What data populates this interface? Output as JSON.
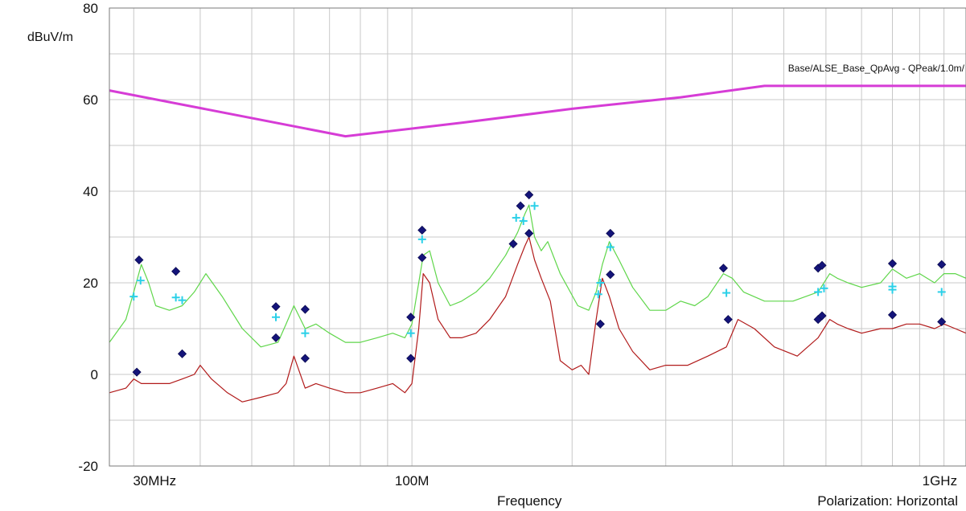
{
  "chart_data": {
    "type": "line",
    "xscale": "log",
    "xlim": [
      27,
      1100
    ],
    "ylim": [
      -20,
      80
    ],
    "ylabel": "dBuV/m",
    "xlabel": "Frequency",
    "x_tick_labels": [
      {
        "x": 30,
        "label": "30MHz"
      },
      {
        "x": 100,
        "label": "100M"
      },
      {
        "x": 1000,
        "label": "1GHz"
      }
    ],
    "y_ticks": [
      -20,
      0,
      20,
      40,
      60,
      80
    ],
    "x_gridlines": [
      30,
      40,
      50,
      60,
      70,
      80,
      90,
      100,
      200,
      300,
      400,
      500,
      600,
      700,
      800,
      900,
      1000
    ],
    "y_gridlines": [
      -20,
      -10,
      0,
      10,
      20,
      30,
      40,
      50,
      60,
      70,
      80
    ],
    "grid": true,
    "polarization": "Polarization: Horizontal",
    "colors": {
      "limit": "#d63cd6",
      "peak": "#5fd64a",
      "average": "#b11a1a",
      "marker_peak": "#14147a",
      "marker_qp": "#2bd0e8",
      "grid": "#c8c8c8",
      "frame": "#7a7a7a"
    },
    "series": [
      {
        "name": "Base/ALSE_Base_QpAvg - QPeak/1.0m/",
        "role": "limit",
        "x": [
          27,
          75,
          125,
          200,
          320,
          460,
          1100
        ],
        "y": [
          62,
          52,
          55,
          58,
          60.5,
          63,
          63
        ]
      },
      {
        "role": "peak",
        "x": [
          27,
          29,
          30,
          31,
          32,
          33,
          35,
          37,
          39,
          41,
          44,
          48,
          52,
          56,
          58,
          60,
          63,
          66,
          70,
          75,
          80,
          86,
          92,
          97,
          100,
          103,
          105,
          108,
          112,
          118,
          124,
          132,
          140,
          150,
          158,
          163,
          166,
          170,
          175,
          180,
          190,
          205,
          215,
          222,
          228,
          235,
          245,
          260,
          280,
          300,
          320,
          340,
          360,
          385,
          400,
          420,
          460,
          520,
          580,
          610,
          630,
          660,
          700,
          760,
          800,
          850,
          900,
          960,
          1000,
          1050,
          1100
        ],
        "y": [
          7,
          12,
          18,
          24,
          20,
          15,
          14,
          15,
          18,
          22,
          17,
          10,
          6,
          7,
          11,
          15,
          10,
          11,
          9,
          7,
          7,
          8,
          9,
          8,
          11,
          20,
          26,
          27,
          20,
          15,
          16,
          18,
          21,
          26,
          31,
          35,
          37,
          30,
          27,
          29,
          22,
          15,
          14,
          18,
          24,
          29,
          25,
          19,
          14,
          14,
          16,
          15,
          17,
          22,
          21,
          18,
          16,
          16,
          18,
          22,
          21,
          20,
          19,
          20,
          23,
          21,
          22,
          20,
          22,
          22,
          21
        ]
      },
      {
        "role": "average",
        "x": [
          27,
          29,
          30,
          31,
          33,
          35,
          37,
          39,
          40,
          42,
          45,
          48,
          52,
          56,
          58,
          60,
          63,
          66,
          70,
          75,
          80,
          86,
          92,
          97,
          100,
          103,
          105,
          108,
          112,
          118,
          124,
          132,
          140,
          150,
          158,
          163,
          166,
          170,
          175,
          182,
          190,
          200,
          208,
          215,
          222,
          228,
          235,
          245,
          260,
          280,
          300,
          330,
          360,
          390,
          410,
          440,
          480,
          530,
          580,
          610,
          630,
          660,
          700,
          760,
          800,
          850,
          900,
          960,
          1000,
          1050,
          1100
        ],
        "y": [
          -4,
          -3,
          -1,
          -2,
          -2,
          -2,
          -1,
          0,
          2,
          -1,
          -4,
          -6,
          -5,
          -4,
          -2,
          4,
          -3,
          -2,
          -3,
          -4,
          -4,
          -3,
          -2,
          -4,
          -2,
          10,
          22,
          20,
          12,
          8,
          8,
          9,
          12,
          17,
          24,
          28,
          30,
          25,
          21,
          16,
          3,
          1,
          2,
          0,
          12,
          21,
          17,
          10,
          5,
          1,
          2,
          2,
          4,
          6,
          12,
          10,
          6,
          4,
          8,
          12,
          11,
          10,
          9,
          10,
          10,
          11,
          11,
          10,
          11,
          10,
          9
        ]
      }
    ],
    "peak_markers": [
      {
        "x": 30.7,
        "y": 25
      },
      {
        "x": 36,
        "y": 22.5
      },
      {
        "x": 55.5,
        "y": 14.8
      },
      {
        "x": 63,
        "y": 14.2
      },
      {
        "x": 99.5,
        "y": 12.5
      },
      {
        "x": 104.5,
        "y": 31.5
      },
      {
        "x": 160,
        "y": 36.8
      },
      {
        "x": 166,
        "y": 39.2
      },
      {
        "x": 236,
        "y": 30.8
      },
      {
        "x": 385,
        "y": 23.2
      },
      {
        "x": 580,
        "y": 23.2
      },
      {
        "x": 590,
        "y": 23.8
      },
      {
        "x": 800,
        "y": 24.2
      },
      {
        "x": 990,
        "y": 24
      }
    ],
    "average_markers": [
      {
        "x": 30.4,
        "y": 0.5
      },
      {
        "x": 37,
        "y": 4.5
      },
      {
        "x": 55.5,
        "y": 8
      },
      {
        "x": 63,
        "y": 3.5
      },
      {
        "x": 99.5,
        "y": 3.5
      },
      {
        "x": 104.5,
        "y": 25.5
      },
      {
        "x": 155,
        "y": 28.5
      },
      {
        "x": 166,
        "y": 30.8
      },
      {
        "x": 226,
        "y": 11
      },
      {
        "x": 236,
        "y": 21.8
      },
      {
        "x": 393,
        "y": 12
      },
      {
        "x": 580,
        "y": 12
      },
      {
        "x": 590,
        "y": 12.8
      },
      {
        "x": 800,
        "y": 13
      },
      {
        "x": 990,
        "y": 11.5
      }
    ],
    "qp_markers": [
      {
        "x": 30,
        "y": 17
      },
      {
        "x": 30.9,
        "y": 20.5
      },
      {
        "x": 36,
        "y": 16.8
      },
      {
        "x": 37,
        "y": 16.2
      },
      {
        "x": 55.5,
        "y": 12.5
      },
      {
        "x": 63,
        "y": 9
      },
      {
        "x": 99.5,
        "y": 9
      },
      {
        "x": 104.5,
        "y": 29.5
      },
      {
        "x": 157,
        "y": 34.2
      },
      {
        "x": 162,
        "y": 33.5
      },
      {
        "x": 170,
        "y": 36.8
      },
      {
        "x": 224,
        "y": 17.5
      },
      {
        "x": 226,
        "y": 20
      },
      {
        "x": 236,
        "y": 27.8
      },
      {
        "x": 390,
        "y": 17.8
      },
      {
        "x": 580,
        "y": 18
      },
      {
        "x": 595,
        "y": 18.8
      },
      {
        "x": 800,
        "y": 18.5
      },
      {
        "x": 800,
        "y": 19.2
      },
      {
        "x": 990,
        "y": 18
      }
    ]
  }
}
